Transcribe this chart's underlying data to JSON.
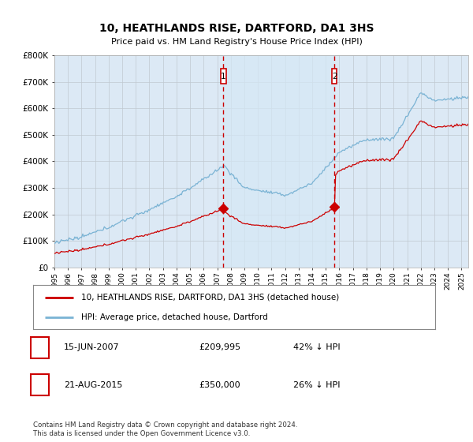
{
  "title": "10, HEATHLANDS RISE, DARTFORD, DA1 3HS",
  "subtitle": "Price paid vs. HM Land Registry's House Price Index (HPI)",
  "ylim": [
    0,
    800000
  ],
  "xlim_start": 1995.0,
  "xlim_end": 2025.5,
  "sale1_date": 2007.46,
  "sale1_price": 209995,
  "sale2_date": 2015.64,
  "sale2_price": 350000,
  "hpi_color": "#7ab3d4",
  "price_color": "#cc0000",
  "dashed_color": "#cc0000",
  "highlight_color": "#d6e8f5",
  "legend_label_price": "10, HEATHLANDS RISE, DARTFORD, DA1 3HS (detached house)",
  "legend_label_hpi": "HPI: Average price, detached house, Dartford",
  "footnote1": "Contains HM Land Registry data © Crown copyright and database right 2024.",
  "footnote2": "This data is licensed under the Open Government Licence v3.0.",
  "background_color": "#dce9f5",
  "grid_color": "#c0c8d0"
}
